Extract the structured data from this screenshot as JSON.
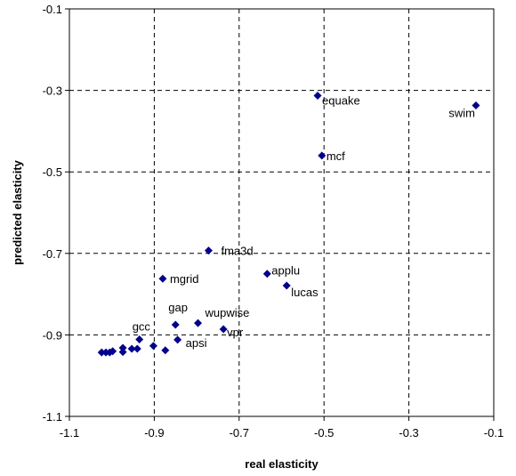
{
  "chart_data": {
    "type": "scatter",
    "title": "",
    "xlabel": "real elasticity",
    "ylabel": "predicted elasticity",
    "xlim": [
      -1.1,
      -0.1
    ],
    "ylim": [
      -1.1,
      -0.1
    ],
    "x_ticks": [
      -1.1,
      -0.9,
      -0.7,
      -0.5,
      -0.3,
      -0.1
    ],
    "y_ticks": [
      -1.1,
      -0.9,
      -0.7,
      -0.5,
      -0.3,
      -0.1
    ],
    "x_tick_labels": [
      "-1.1",
      "-0.9",
      "-0.7",
      "-0.5",
      "-0.3",
      "-0.1"
    ],
    "y_tick_labels": [
      "-1.1",
      "-0.9",
      "-0.7",
      "-0.5",
      "-0.3",
      "-0.1"
    ],
    "grid": true,
    "marker": "diamond",
    "marker_color": "#00008B",
    "series": [
      {
        "points": [
          {
            "x": -0.515,
            "y": -0.313,
            "label": "equake"
          },
          {
            "x": -0.142,
            "y": -0.337,
            "label": "swim"
          },
          {
            "x": -0.505,
            "y": -0.46,
            "label": "mcf"
          },
          {
            "x": -0.772,
            "y": -0.693,
            "label": "fma3d"
          },
          {
            "x": -0.634,
            "y": -0.75,
            "label": "applu"
          },
          {
            "x": -0.88,
            "y": -0.762,
            "label": "mgrid"
          },
          {
            "x": -0.588,
            "y": -0.779,
            "label": "lucas"
          },
          {
            "x": -0.85,
            "y": -0.875,
            "label": "gap"
          },
          {
            "x": -0.797,
            "y": -0.871,
            "label": "wupwise"
          },
          {
            "x": -0.737,
            "y": -0.886,
            "label": "vpr"
          },
          {
            "x": -0.935,
            "y": -0.911,
            "label": "gcc"
          },
          {
            "x": -0.845,
            "y": -0.912,
            "label": "apsi"
          },
          {
            "x": -0.902,
            "y": -0.927,
            "label": ""
          },
          {
            "x": -0.94,
            "y": -0.934,
            "label": ""
          },
          {
            "x": -0.953,
            "y": -0.934,
            "label": ""
          },
          {
            "x": -0.974,
            "y": -0.932,
            "label": ""
          },
          {
            "x": -0.974,
            "y": -0.942,
            "label": ""
          },
          {
            "x": -0.998,
            "y": -0.94,
            "label": ""
          },
          {
            "x": -1.005,
            "y": -0.943,
            "label": ""
          },
          {
            "x": -1.014,
            "y": -0.943,
            "label": ""
          },
          {
            "x": -1.024,
            "y": -0.943,
            "label": ""
          },
          {
            "x": -0.874,
            "y": -0.938,
            "label": ""
          }
        ]
      }
    ]
  }
}
